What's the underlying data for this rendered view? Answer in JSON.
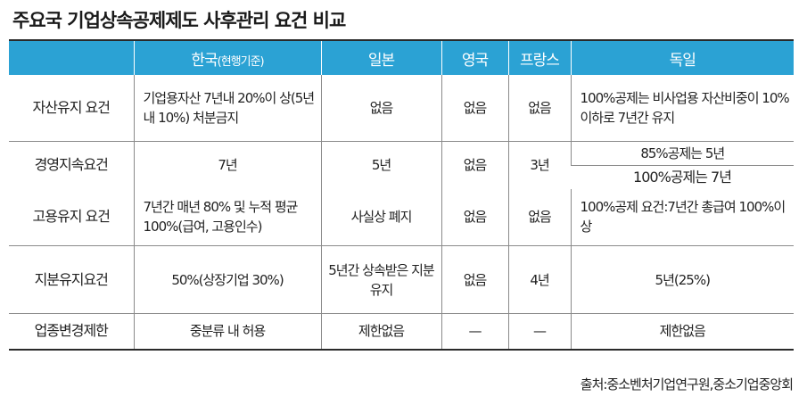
{
  "title": "주요국  기업상속공제제도 사후관리 요건 비교",
  "header": {
    "blank": "",
    "korea": "한국",
    "korea_sub": "(현행기준)",
    "japan": "일본",
    "uk": "영국",
    "france": "프랑스",
    "germany": "독일"
  },
  "rows": {
    "asset": {
      "label": "자산유지 요건",
      "korea": "기업용자산 7년내 20%이 상(5년내 10%) 처분금지",
      "japan": "없음",
      "uk": "없음",
      "france": "없음",
      "germany": "100%공제는 비사업용 자산비중이 10%이하로 7년간 유지"
    },
    "management": {
      "label": "경영지속요건",
      "korea": "7년",
      "japan": "5년",
      "uk": "없음",
      "france": "3년",
      "germany_a": "85%공제는 5년",
      "germany_b": "100%공제는 7년"
    },
    "employment": {
      "label": "고용유지 요건",
      "korea": "7년간 매년 80% 및 누적 평균 100%(급여, 고용인수)",
      "japan": "사실상 폐지",
      "uk": "없음",
      "france": "없음",
      "germany": "100%공제  요건:7년간  총급여 100%이상"
    },
    "equity": {
      "label": "지분유지요건",
      "korea": "50%(상장기업 30%)",
      "japan": "5년간 상속받은 지분 유지",
      "uk": "없음",
      "france": "4년",
      "germany": "5년(25%)"
    },
    "industry": {
      "label": "업종변경제한",
      "korea": "중분류 내 허용",
      "japan": "제한없음",
      "uk": "—",
      "france": "—",
      "germany": "제한없음"
    }
  },
  "source": "출처:중소벤처기업연구원,중소기업중앙회"
}
